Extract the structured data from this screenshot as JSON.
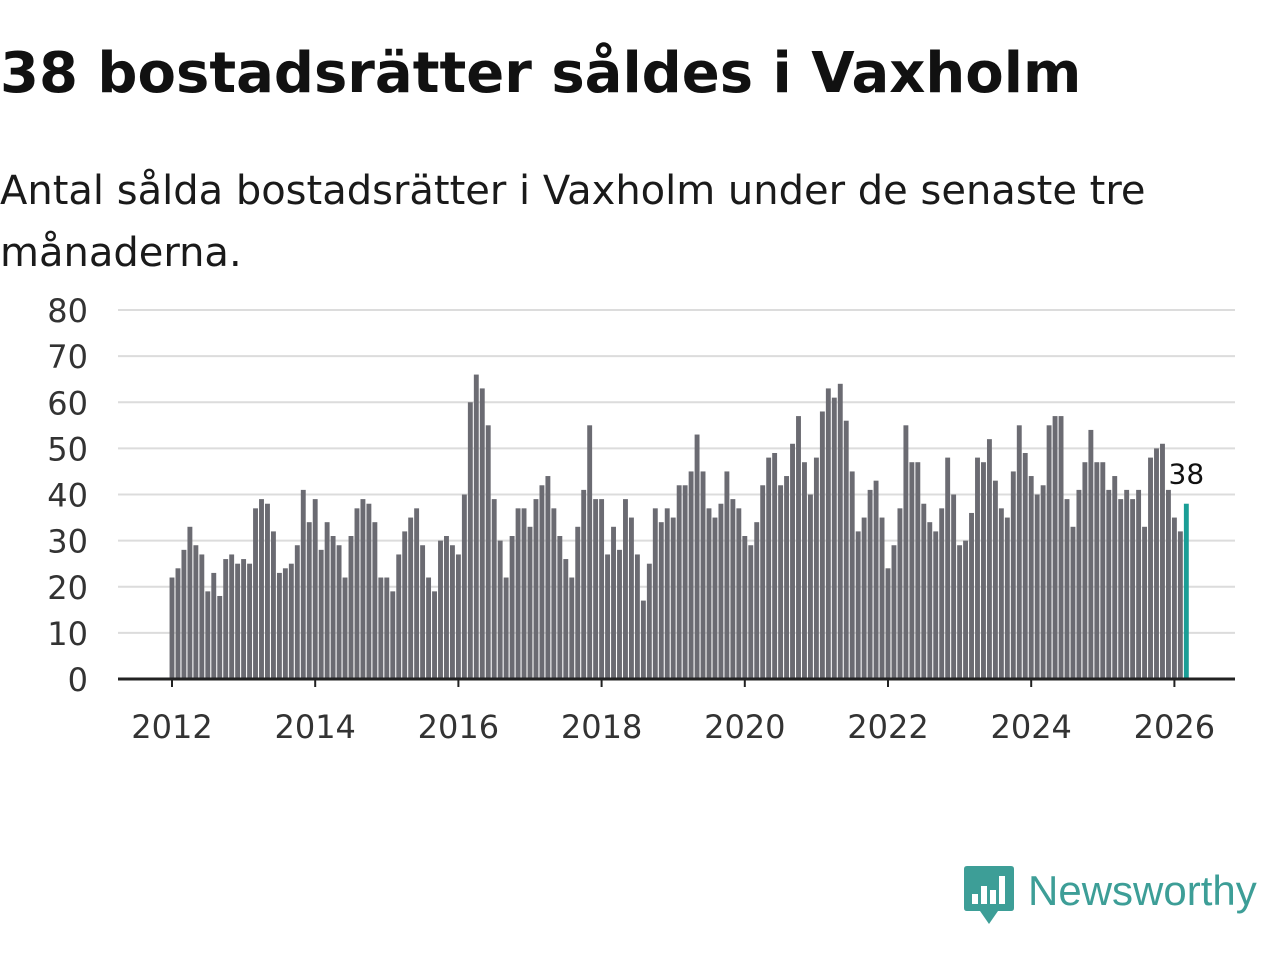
{
  "header": {
    "title": "38 bostadsrätter såldes i Vaxholm",
    "subtitle": "Antal sålda bostadsrätter i Vaxholm under de senaste tre månaderna."
  },
  "brand": {
    "name": "Newsworthy",
    "color": "#3d9e97",
    "icon": "newsworthy-logo-icon"
  },
  "colors": {
    "bar": "#6b6b72",
    "highlight": "#1a9e96",
    "grid": "#dcdcdc",
    "axis": "#222222",
    "tick_text": "#333333"
  },
  "chart_data": {
    "type": "bar",
    "title": "38 bostadsrätter såldes i Vaxholm",
    "subtitle": "Antal sålda bostadsrätter i Vaxholm under de senaste tre månaderna.",
    "xlabel": "",
    "ylabel": "",
    "ylim": [
      0,
      80
    ],
    "yticks": [
      "0",
      "10",
      "20",
      "30",
      "40",
      "50",
      "60",
      "70",
      "80"
    ],
    "xticks": [
      "2012",
      "2014",
      "2016",
      "2018",
      "2020",
      "2022",
      "2024",
      "2026"
    ],
    "start": "2012-01",
    "frequency": "monthly",
    "grid": true,
    "highlight_label": "38",
    "values": [
      22,
      24,
      28,
      33,
      29,
      27,
      19,
      23,
      18,
      26,
      27,
      25,
      26,
      25,
      37,
      39,
      38,
      32,
      23,
      24,
      25,
      29,
      41,
      34,
      39,
      28,
      34,
      31,
      29,
      22,
      31,
      37,
      39,
      38,
      34,
      22,
      22,
      19,
      27,
      32,
      35,
      37,
      29,
      22,
      19,
      30,
      31,
      29,
      27,
      40,
      60,
      66,
      63,
      55,
      39,
      30,
      22,
      31,
      37,
      37,
      33,
      39,
      42,
      44,
      37,
      31,
      26,
      22,
      33,
      41,
      55,
      39,
      39,
      27,
      33,
      28,
      39,
      35,
      27,
      17,
      25,
      37,
      34,
      37,
      35,
      42,
      42,
      45,
      53,
      45,
      37,
      35,
      38,
      45,
      39,
      37,
      31,
      29,
      34,
      42,
      48,
      49,
      42,
      44,
      51,
      57,
      47,
      40,
      48,
      58,
      63,
      61,
      64,
      56,
      45,
      32,
      35,
      41,
      43,
      35,
      24,
      29,
      37,
      55,
      47,
      47,
      38,
      34,
      32,
      37,
      48,
      40,
      29,
      30,
      36,
      48,
      47,
      52,
      43,
      37,
      35,
      45,
      55,
      49,
      44,
      40,
      42,
      55,
      57,
      57,
      39,
      33,
      41,
      47,
      54,
      47,
      47,
      41,
      44,
      39,
      41,
      39,
      41,
      33,
      48,
      50,
      51,
      41,
      35,
      32,
      38
    ]
  }
}
